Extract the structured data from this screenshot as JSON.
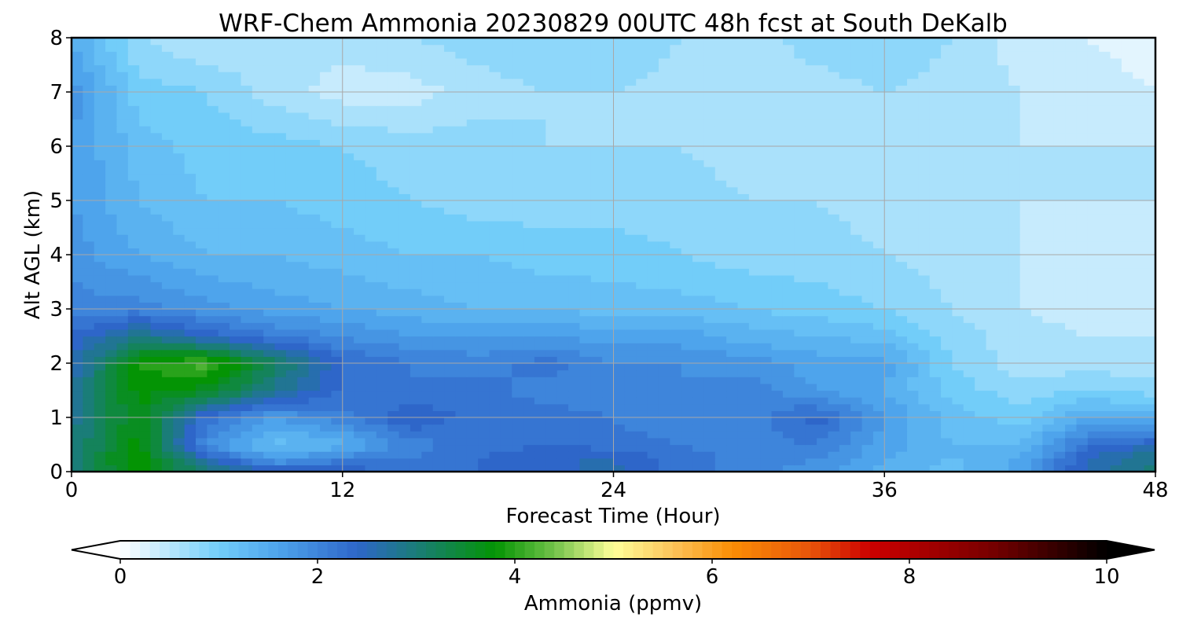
{
  "chart_data": {
    "type": "heatmap",
    "title": "WRF-Chem Ammonia  20230829 00UTC 48h fcst at South DeKalb",
    "xlabel": "Forecast Time (Hour)",
    "ylabel": "Alt AGL (km)",
    "xlim": [
      0,
      48
    ],
    "ylim": [
      0,
      8
    ],
    "x_ticks": [
      "0",
      "12",
      "24",
      "36",
      "48"
    ],
    "y_ticks": [
      "0",
      "1",
      "2",
      "3",
      "4",
      "5",
      "6",
      "7",
      "8"
    ],
    "grid": true,
    "x_hours": [
      0,
      3,
      6,
      9,
      12,
      15,
      18,
      21,
      24,
      27,
      30,
      33,
      36,
      39,
      42,
      45,
      48
    ],
    "z_km": [
      0,
      0.25,
      0.5,
      1,
      1.5,
      2,
      2.5,
      3,
      4,
      5,
      6,
      7,
      8
    ],
    "values_ppmv": [
      [
        3.0,
        3.8,
        3.0,
        2.6,
        2.5,
        2.2,
        2.3,
        2.4,
        2.6,
        2.2,
        2.0,
        1.8,
        1.4,
        1.2,
        1.6,
        2.6,
        3.0
      ],
      [
        3.0,
        3.9,
        2.5,
        1.6,
        2.0,
        2.1,
        2.3,
        2.5,
        2.5,
        2.2,
        2.0,
        1.9,
        1.5,
        1.3,
        1.5,
        2.5,
        2.9
      ],
      [
        2.9,
        3.8,
        1.8,
        1.2,
        1.4,
        2.0,
        2.2,
        2.3,
        2.2,
        2.1,
        2.0,
        2.1,
        1.6,
        1.3,
        1.3,
        2.2,
        2.5
      ],
      [
        2.8,
        3.7,
        2.2,
        1.7,
        2.0,
        2.5,
        2.2,
        2.2,
        2.1,
        1.9,
        2.0,
        2.4,
        1.7,
        1.2,
        1.0,
        1.5,
        1.4
      ],
      [
        2.7,
        3.8,
        3.6,
        2.8,
        2.3,
        2.1,
        2.2,
        2.0,
        2.0,
        1.9,
        2.0,
        1.7,
        1.5,
        1.0,
        0.8,
        0.9,
        0.8
      ],
      [
        2.5,
        3.9,
        4.2,
        3.2,
        2.3,
        2.1,
        2.0,
        2.2,
        1.9,
        1.9,
        1.8,
        1.6,
        1.6,
        0.9,
        0.6,
        0.6,
        0.6
      ],
      [
        2.3,
        2.9,
        2.4,
        2.1,
        1.9,
        1.7,
        1.7,
        1.7,
        1.6,
        1.6,
        1.4,
        1.3,
        1.2,
        0.8,
        0.6,
        0.5,
        0.5
      ],
      [
        2.0,
        2.0,
        1.8,
        1.6,
        1.5,
        1.4,
        1.3,
        1.3,
        1.2,
        1.2,
        1.1,
        1.0,
        0.9,
        0.7,
        0.5,
        0.4,
        0.4
      ],
      [
        1.8,
        1.5,
        1.3,
        1.3,
        1.2,
        1.1,
        1.1,
        1.0,
        1.0,
        0.9,
        0.8,
        0.8,
        0.7,
        0.6,
        0.5,
        0.4,
        0.4
      ],
      [
        1.7,
        1.3,
        1.1,
        1.1,
        1.0,
        0.9,
        0.8,
        0.8,
        0.8,
        0.8,
        0.7,
        0.7,
        0.6,
        0.5,
        0.5,
        0.5,
        0.5
      ],
      [
        1.7,
        1.2,
        1.0,
        1.0,
        0.9,
        0.8,
        0.8,
        0.7,
        0.7,
        0.7,
        0.6,
        0.6,
        0.6,
        0.6,
        0.5,
        0.5,
        0.5
      ],
      [
        1.8,
        1.0,
        0.9,
        0.6,
        0.4,
        0.4,
        0.6,
        0.7,
        0.7,
        0.6,
        0.6,
        0.6,
        0.7,
        0.6,
        0.5,
        0.4,
        0.3
      ],
      [
        1.5,
        0.7,
        0.5,
        0.6,
        0.6,
        0.7,
        0.8,
        0.9,
        0.9,
        0.7,
        0.6,
        0.8,
        0.9,
        0.7,
        0.4,
        0.3,
        0.2
      ]
    ],
    "colorbar": {
      "label": "Ammonia  (ppmv)",
      "min": 0,
      "max": 10,
      "ticks": [
        "0",
        "2",
        "4",
        "6",
        "8",
        "10"
      ],
      "extend": "both",
      "stops": [
        {
          "v": 0.0,
          "c": "#ffffff"
        },
        {
          "v": 1.0,
          "c": "#72cdf9"
        },
        {
          "v": 1.6,
          "c": "#4ea4ec"
        },
        {
          "v": 2.4,
          "c": "#2e66c9"
        },
        {
          "v": 3.0,
          "c": "#1a7d78"
        },
        {
          "v": 3.8,
          "c": "#049404"
        },
        {
          "v": 4.4,
          "c": "#72c24a"
        },
        {
          "v": 5.0,
          "c": "#ffff99"
        },
        {
          "v": 5.6,
          "c": "#fcc45a"
        },
        {
          "v": 6.2,
          "c": "#fa8e05"
        },
        {
          "v": 7.0,
          "c": "#e8540a"
        },
        {
          "v": 7.6,
          "c": "#cc0000"
        },
        {
          "v": 8.8,
          "c": "#7a0000"
        },
        {
          "v": 10.0,
          "c": "#000000"
        }
      ]
    }
  }
}
